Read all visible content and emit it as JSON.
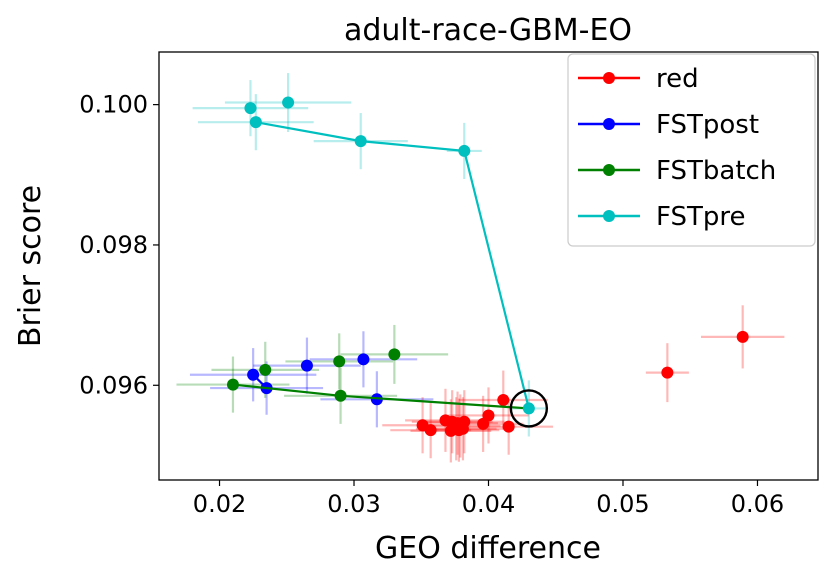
{
  "chart_data": {
    "type": "scatter",
    "title": "adult-race-GBM-EO",
    "xlabel": "GEO difference",
    "ylabel": "Brier score",
    "xlim": [
      0.0155,
      0.0645
    ],
    "ylim": [
      0.09465,
      0.10075
    ],
    "xticks": [
      0.02,
      0.03,
      0.04,
      0.05,
      0.06
    ],
    "xtick_labels": [
      "0.02",
      "0.03",
      "0.04",
      "0.05",
      "0.06"
    ],
    "yticks": [
      0.096,
      0.098,
      0.1
    ],
    "ytick_labels": [
      "0.096",
      "0.098",
      "0.100"
    ],
    "legend_position": "top-right",
    "highlight": {
      "x": 0.043,
      "y": 0.09567,
      "label": "circled point"
    },
    "series": [
      {
        "name": "red",
        "color": "#ff0000",
        "line": false,
        "points": [
          {
            "x": 0.0589,
            "y": 0.09669,
            "xerr": 0.0031,
            "yerr": 0.00045
          },
          {
            "x": 0.0533,
            "y": 0.09618,
            "xerr": 0.0016,
            "yerr": 0.00042
          },
          {
            "x": 0.0411,
            "y": 0.09579,
            "xerr": 0.0033,
            "yerr": 0.00042
          },
          {
            "x": 0.0415,
            "y": 0.09541,
            "xerr": 0.0033,
            "yerr": 0.0004
          },
          {
            "x": 0.04,
            "y": 0.09557,
            "xerr": 0.003,
            "yerr": 0.0004
          },
          {
            "x": 0.0396,
            "y": 0.09545,
            "xerr": 0.003,
            "yerr": 0.0004
          },
          {
            "x": 0.0382,
            "y": 0.09548,
            "xerr": 0.003,
            "yerr": 0.00045
          },
          {
            "x": 0.0381,
            "y": 0.09538,
            "xerr": 0.003,
            "yerr": 0.00045
          },
          {
            "x": 0.0379,
            "y": 0.09542,
            "xerr": 0.003,
            "yerr": 0.00045
          },
          {
            "x": 0.0378,
            "y": 0.09536,
            "xerr": 0.003,
            "yerr": 0.00045
          },
          {
            "x": 0.0377,
            "y": 0.09546,
            "xerr": 0.003,
            "yerr": 0.00045
          },
          {
            "x": 0.0376,
            "y": 0.09538,
            "xerr": 0.003,
            "yerr": 0.00045
          },
          {
            "x": 0.0373,
            "y": 0.09548,
            "xerr": 0.003,
            "yerr": 0.00045
          },
          {
            "x": 0.0372,
            "y": 0.09535,
            "xerr": 0.003,
            "yerr": 0.00045
          },
          {
            "x": 0.0368,
            "y": 0.0955,
            "xerr": 0.003,
            "yerr": 0.00045
          },
          {
            "x": 0.0357,
            "y": 0.09536,
            "xerr": 0.003,
            "yerr": 0.0004
          },
          {
            "x": 0.0351,
            "y": 0.09543,
            "xerr": 0.003,
            "yerr": 0.0004
          }
        ]
      },
      {
        "name": "FSTpost",
        "color": "#0000ff",
        "line": true,
        "points": [
          {
            "x": 0.0225,
            "y": 0.09615,
            "xerr": 0.0047,
            "yerr": 0.00038
          },
          {
            "x": 0.0235,
            "y": 0.09596,
            "xerr": 0.0042,
            "yerr": 0.00038
          },
          {
            "x": 0.0265,
            "y": 0.09628,
            "xerr": 0.004,
            "yerr": 0.0004
          },
          {
            "x": 0.0307,
            "y": 0.09637,
            "xerr": 0.004,
            "yerr": 0.0004
          },
          {
            "x": 0.0317,
            "y": 0.0958,
            "xerr": 0.0042,
            "yerr": 0.0004
          }
        ],
        "line_x": [
          0.0225,
          0.0235
        ],
        "line_y": [
          0.09615,
          0.09596
        ]
      },
      {
        "name": "FSTbatch",
        "color": "#008000",
        "line": true,
        "points": [
          {
            "x": 0.021,
            "y": 0.09601,
            "xerr": 0.0042,
            "yerr": 0.0004
          },
          {
            "x": 0.0234,
            "y": 0.09622,
            "xerr": 0.004,
            "yerr": 0.0004
          },
          {
            "x": 0.0289,
            "y": 0.09634,
            "xerr": 0.004,
            "yerr": 0.0004
          },
          {
            "x": 0.029,
            "y": 0.09585,
            "xerr": 0.0042,
            "yerr": 0.0004
          },
          {
            "x": 0.033,
            "y": 0.09644,
            "xerr": 0.004,
            "yerr": 0.00042
          }
        ],
        "line_x": [
          0.021,
          0.029,
          0.043
        ],
        "line_y": [
          0.09601,
          0.09585,
          0.09567
        ]
      },
      {
        "name": "FSTpre",
        "color": "#00bfbf",
        "line": true,
        "points": [
          {
            "x": 0.0223,
            "y": 0.09995,
            "xerr": 0.0043,
            "yerr": 0.0004
          },
          {
            "x": 0.0251,
            "y": 0.10003,
            "xerr": 0.0047,
            "yerr": 0.00042
          },
          {
            "x": 0.0227,
            "y": 0.09975,
            "xerr": 0.0043,
            "yerr": 0.0004
          },
          {
            "x": 0.0305,
            "y": 0.09948,
            "xerr": 0.0035,
            "yerr": 0.0004
          },
          {
            "x": 0.0382,
            "y": 0.09934,
            "xerr": 0.0013,
            "yerr": 0.0004
          },
          {
            "x": 0.043,
            "y": 0.09567,
            "xerr": 0.0013,
            "yerr": 0.0004
          }
        ],
        "line_x": [
          0.0227,
          0.0305,
          0.0382,
          0.043
        ],
        "line_y": [
          0.09975,
          0.09948,
          0.09934,
          0.09567
        ]
      }
    ]
  }
}
